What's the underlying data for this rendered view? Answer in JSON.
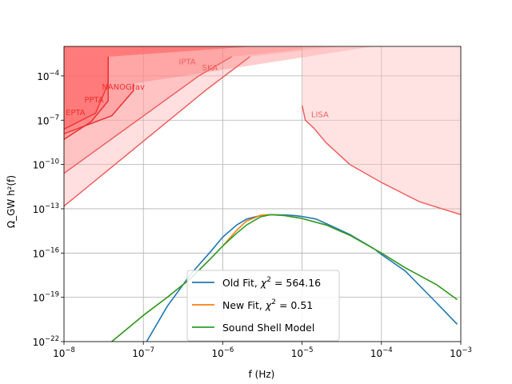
{
  "chart_data": {
    "type": "line",
    "xlabel": "f (Hz)",
    "ylabel": "Ω_GW h²(f)",
    "xscale": "log",
    "yscale": "log",
    "xlim": [
      1e-08,
      0.001
    ],
    "ylim": [
      1e-22,
      0.01
    ],
    "grid": true,
    "legend_placement": "lower-center",
    "x_ticks": [
      {
        "value": 1e-08,
        "label": "10",
        "exp": "−8"
      },
      {
        "value": 1e-07,
        "label": "10",
        "exp": "−7"
      },
      {
        "value": 1e-06,
        "label": "10",
        "exp": "−6"
      },
      {
        "value": 1e-05,
        "label": "10",
        "exp": "−5"
      },
      {
        "value": 0.0001,
        "label": "10",
        "exp": "−4"
      },
      {
        "value": 0.001,
        "label": "10",
        "exp": "−3"
      }
    ],
    "y_ticks": [
      {
        "value": 1e-22,
        "label": "10",
        "exp": "−22"
      },
      {
        "value": 1e-19,
        "label": "10",
        "exp": "−19"
      },
      {
        "value": 1e-16,
        "label": "10",
        "exp": "−16"
      },
      {
        "value": 1e-13,
        "label": "10",
        "exp": "−13"
      },
      {
        "value": 1e-10,
        "label": "10",
        "exp": "−10"
      },
      {
        "value": 1e-07,
        "label": "10",
        "exp": "−7"
      },
      {
        "value": 0.0001,
        "label": "10",
        "exp": "−4"
      }
    ],
    "sensitivity_regions": [
      {
        "name": "SKA",
        "fill": "#ffb0b0",
        "fill_opacity": 0.4,
        "stroke": "#f06060",
        "x": [
          1e-08,
          6e-07,
          2.2e-06
        ],
        "y": [
          1.5e-13,
          1e-05,
          0.002
        ]
      },
      {
        "name": "IPTA",
        "fill": "#ff9090",
        "fill_opacity": 0.35,
        "stroke": "#f06060",
        "x": [
          1e-08,
          5e-07,
          1.3e-06
        ],
        "y": [
          2.5e-11,
          0.0001,
          0.002
        ]
      },
      {
        "name": "NANOGrav",
        "fill": "#ff7070",
        "fill_opacity": 0.35,
        "stroke": "#ee3030",
        "x": [
          1e-08,
          4e-08,
          7.5e-08,
          7.5e-08
        ],
        "y": [
          1.2e-08,
          2e-07,
          1e-05,
          3e-05
        ]
      },
      {
        "name": "PPTA",
        "fill": "#ff6060",
        "fill_opacity": 0.35,
        "stroke": "#ee3030",
        "x": [
          1e-08,
          2.5e-08,
          3.6e-08,
          3.6e-08
        ],
        "y": [
          2.5e-08,
          3e-07,
          3e-05,
          0.002
        ]
      },
      {
        "name": "EPTA",
        "fill": "#ff5050",
        "fill_opacity": 0.3,
        "stroke": "#ee3030",
        "x": [
          1e-08,
          2.2e-08,
          3.6e-08,
          3.6e-08
        ],
        "y": [
          5e-09,
          8e-08,
          2e-06,
          0.002
        ]
      },
      {
        "name": "LISA",
        "fill": "#ffc0c0",
        "fill_opacity": 0.45,
        "stroke": "#f06060",
        "x": [
          1e-05,
          1.1e-05,
          1.4e-05,
          2e-05,
          4e-05,
          0.0001,
          0.0003,
          0.001
        ],
        "y": [
          1e-06,
          1e-07,
          3e-08,
          3e-09,
          1e-10,
          6e-12,
          3e-13,
          4e-14
        ]
      }
    ],
    "region_labels": [
      {
        "text": "IPTA",
        "x": 2.8e-07,
        "y": 0.0006,
        "color": "#f06060"
      },
      {
        "text": "SKA",
        "x": 5.5e-07,
        "y": 0.00023,
        "color": "#f06060"
      },
      {
        "text": "NANOGrav",
        "x": 3e-08,
        "y": 1.2e-05,
        "color": "#ee3030"
      },
      {
        "text": "PPTA",
        "x": 1.8e-08,
        "y": 1.6e-06,
        "color": "#ee3030"
      },
      {
        "text": "EPTA",
        "x": 1.05e-08,
        "y": 2.2e-07,
        "color": "#ee3030"
      },
      {
        "text": "LISA",
        "x": 1.3e-05,
        "y": 1.6e-07,
        "color": "#f06060"
      }
    ],
    "series": [
      {
        "name": "Old Fit, χ² = 564.16",
        "label_main": "Old Fit, ",
        "label_chi": "χ",
        "label_exp": "2",
        "label_rest": " = 564.16",
        "color": "#1f77b4",
        "x": [
          1.1e-07,
          2e-07,
          4e-07,
          7e-07,
          1e-06,
          1.5e-06,
          2e-06,
          3e-06,
          4e-06,
          6e-06,
          8e-06,
          1e-05,
          1.5e-05,
          2e-05,
          4e-05,
          8e-05,
          0.0001,
          0.0002,
          0.0005,
          0.0009
        ],
        "y": [
          1e-22,
          2.5e-20,
          4e-18,
          1.2e-16,
          1.2e-15,
          8e-15,
          2e-14,
          3.5e-14,
          4e-14,
          3.8e-14,
          3.5e-14,
          3e-14,
          2e-14,
          1e-14,
          1.8e-15,
          2e-16,
          8e-17,
          6e-18,
          4e-20,
          1.5e-21
        ]
      },
      {
        "name": "New Fit, χ² = 0.51",
        "label_main": "New Fit, ",
        "label_chi": "χ",
        "label_exp": "2",
        "label_rest": " = 0.51",
        "color": "#ff7f0e",
        "x": [
          4e-08,
          1e-07,
          2e-07,
          4e-07,
          7e-07,
          1e-06,
          1.5e-06,
          2e-06,
          3e-06,
          4e-06,
          6e-06,
          1e-05,
          2e-05,
          4e-05,
          0.0001,
          0.0002,
          0.0005,
          0.0009
        ],
        "y": [
          1e-22,
          6e-21,
          1e-19,
          2e-18,
          4e-17,
          3e-16,
          3.5e-15,
          1.5e-14,
          3.6e-14,
          4e-14,
          3.5e-14,
          2.2e-14,
          8e-15,
          1.6e-15,
          1e-16,
          1e-17,
          7e-19,
          7e-20
        ]
      },
      {
        "name": "Sound Shell Model",
        "label_main": "Sound Shell Model",
        "label_chi": "",
        "label_exp": "",
        "label_rest": "",
        "color": "#2ca02c",
        "x": [
          4e-08,
          1e-07,
          2e-07,
          4e-07,
          7e-07,
          1e-06,
          1.5e-06,
          2e-06,
          3e-06,
          4e-06,
          6e-06,
          1e-05,
          2e-05,
          4e-05,
          0.0001,
          0.0002,
          0.0005,
          0.0009
        ],
        "y": [
          1e-22,
          6e-21,
          1e-19,
          2e-18,
          4e-17,
          3e-16,
          2.2e-15,
          8e-15,
          2.8e-14,
          4e-14,
          3.5e-14,
          2.2e-14,
          8e-15,
          1.6e-15,
          1e-16,
          1e-17,
          7e-19,
          7e-20
        ]
      }
    ]
  }
}
